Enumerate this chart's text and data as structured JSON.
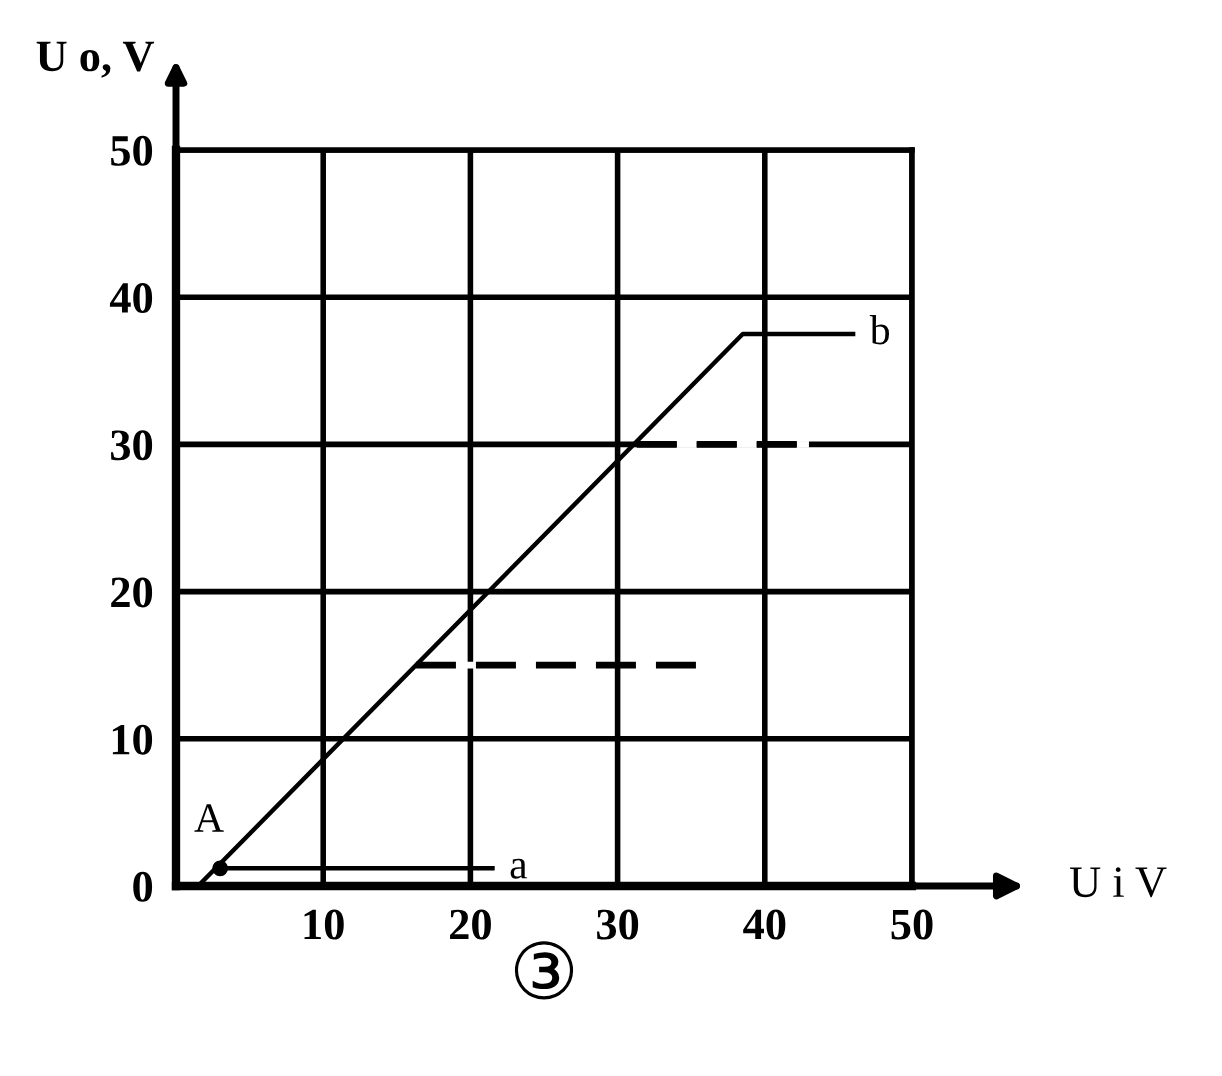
{
  "chart_data": {
    "type": "line",
    "xlabel": "U i V",
    "ylabel": "U o, V",
    "annotations": [
      "③"
    ],
    "xlim": [
      0,
      50
    ],
    "ylim": [
      0,
      50
    ],
    "xticks": [
      {
        "value": 0,
        "label": null
      },
      10,
      20,
      30,
      40,
      50
    ],
    "yticks": [
      0,
      10,
      20,
      30,
      40,
      50
    ],
    "grid": true,
    "series": [
      {
        "name": "b",
        "color": "#000000",
        "x": [
          1.5,
          38.5,
          46
        ],
        "values": [
          0,
          37.5,
          37.5
        ]
      },
      {
        "name": "a",
        "color": "#000000",
        "x": [
          3,
          21.5
        ],
        "values": [
          1.2,
          1.2
        ]
      },
      {
        "name": "A",
        "type": "scatter",
        "color": "#000000",
        "x": [
          3
        ],
        "values": [
          1.2
        ]
      },
      {
        "color": "#000000",
        "line_style": "dashed",
        "x": [
          16.3,
          35.5
        ],
        "values": [
          15,
          15
        ]
      },
      {
        "color": "#000000",
        "line_style": "dashed",
        "x": [
          31.3,
          43
        ],
        "values": [
          30,
          30
        ]
      }
    ]
  }
}
